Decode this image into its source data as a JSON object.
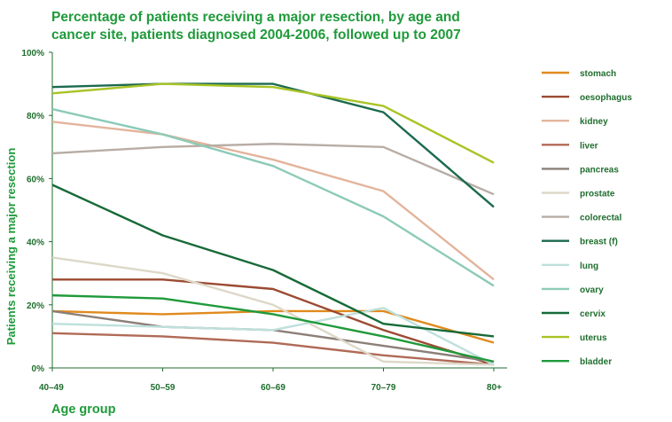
{
  "chart_data": {
    "type": "line",
    "title_lines": [
      "Percentage of patients receiving a major resection, by age and",
      "cancer site, patients diagnosed 2004-2006, followed up to 2007"
    ],
    "xlabel": "Age group",
    "ylabel": "Patients receiving a major resection",
    "categories": [
      "40–49",
      "50–59",
      "60–69",
      "70–79",
      "80+"
    ],
    "ylim": [
      0,
      100
    ],
    "yticks": [
      {
        "value": 0,
        "label": "0%"
      },
      {
        "value": 20,
        "label": "20%"
      },
      {
        "value": 40,
        "label": "40%"
      },
      {
        "value": 60,
        "label": "60%"
      },
      {
        "value": 80,
        "label": "80%"
      },
      {
        "value": 100,
        "label": "100%"
      }
    ],
    "grid": false,
    "legend_position": "right",
    "series": [
      {
        "name": "stomach",
        "color": "#e08a1e",
        "values": [
          18,
          17,
          18,
          18,
          8
        ]
      },
      {
        "name": "oesophagus",
        "color": "#9c4a32",
        "values": [
          28,
          28,
          25,
          12,
          1
        ]
      },
      {
        "name": "kidney",
        "color": "#e3b49c",
        "values": [
          78,
          74,
          66,
          56,
          28
        ]
      },
      {
        "name": "liver",
        "color": "#b06a56",
        "values": [
          11,
          10,
          8,
          4,
          1
        ]
      },
      {
        "name": "pancreas",
        "color": "#8c7f78",
        "values": [
          18,
          13,
          12,
          7,
          2
        ]
      },
      {
        "name": "prostate",
        "color": "#ddd8c8",
        "values": [
          35,
          30,
          20,
          2,
          1
        ]
      },
      {
        "name": "colorectal",
        "color": "#b8aca4",
        "values": [
          68,
          70,
          71,
          70,
          55
        ]
      },
      {
        "name": "breast (f)",
        "color": "#1b6a4e",
        "values": [
          89,
          90,
          90,
          81,
          51
        ]
      },
      {
        "name": "lung",
        "color": "#bfe0dc",
        "values": [
          14,
          13,
          12,
          19,
          1
        ]
      },
      {
        "name": "ovary",
        "color": "#8ccab8",
        "values": [
          82,
          74,
          64,
          48,
          26
        ]
      },
      {
        "name": "cervix",
        "color": "#176a38",
        "values": [
          58,
          42,
          31,
          14,
          10
        ]
      },
      {
        "name": "uterus",
        "color": "#a8c426",
        "values": [
          87,
          90,
          89,
          83,
          65
        ]
      },
      {
        "name": "bladder",
        "color": "#1f9a3a",
        "values": [
          23,
          22,
          17,
          10,
          2
        ]
      }
    ]
  }
}
